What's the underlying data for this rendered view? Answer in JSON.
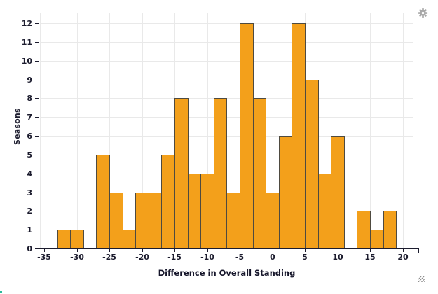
{
  "chart_data": {
    "type": "bar",
    "subtype": "histogram",
    "title": "",
    "xlabel": "Difference in Overall Standing",
    "ylabel": "Seasons",
    "x_ticks": [
      -35,
      -30,
      -25,
      -20,
      -15,
      -10,
      -5,
      0,
      5,
      10,
      15,
      20
    ],
    "y_ticks": [
      0,
      1,
      2,
      3,
      4,
      5,
      6,
      7,
      8,
      9,
      10,
      11,
      12
    ],
    "xlim": [
      -35.9,
      22.4
    ],
    "ylim": [
      0,
      12.7
    ],
    "grid": true,
    "legend": "none",
    "bin_width": 2,
    "bins": [
      {
        "start": -33,
        "end": -31,
        "count": 1
      },
      {
        "start": -31,
        "end": -29,
        "count": 1
      },
      {
        "start": -29,
        "end": -27,
        "count": 0
      },
      {
        "start": -27,
        "end": -25,
        "count": 5
      },
      {
        "start": -25,
        "end": -23,
        "count": 3
      },
      {
        "start": -23,
        "end": -21,
        "count": 1
      },
      {
        "start": -21,
        "end": -19,
        "count": 3
      },
      {
        "start": -19,
        "end": -17,
        "count": 3
      },
      {
        "start": -17,
        "end": -15,
        "count": 5
      },
      {
        "start": -15,
        "end": -13,
        "count": 8
      },
      {
        "start": -13,
        "end": -11,
        "count": 4
      },
      {
        "start": -11,
        "end": -9,
        "count": 4
      },
      {
        "start": -9,
        "end": -7,
        "count": 8
      },
      {
        "start": -7,
        "end": -5,
        "count": 3
      },
      {
        "start": -5,
        "end": -3,
        "count": 12
      },
      {
        "start": -3,
        "end": -1,
        "count": 8
      },
      {
        "start": -1,
        "end": 1,
        "count": 3
      },
      {
        "start": 1,
        "end": 3,
        "count": 6
      },
      {
        "start": 3,
        "end": 5,
        "count": 12
      },
      {
        "start": 5,
        "end": 7,
        "count": 9
      },
      {
        "start": 7,
        "end": 9,
        "count": 4
      },
      {
        "start": 9,
        "end": 11,
        "count": 6
      },
      {
        "start": 11,
        "end": 13,
        "count": 0
      },
      {
        "start": 13,
        "end": 15,
        "count": 2
      },
      {
        "start": 15,
        "end": 17,
        "count": 1
      },
      {
        "start": 17,
        "end": 19,
        "count": 2
      }
    ],
    "colors": {
      "bar_fill": "#F3A01B",
      "bar_border": "#4e4a40",
      "grid_line": "#e9e9e9",
      "axis_line": "#1c1c2e",
      "label_text": "#1c1c2e"
    }
  },
  "ui": {
    "gear_icon": "settings-gear",
    "resize_handle": "diagonal-resize-grip",
    "corner_dot_color": "#2ab99a",
    "gear_color": "#a8a8a8"
  }
}
